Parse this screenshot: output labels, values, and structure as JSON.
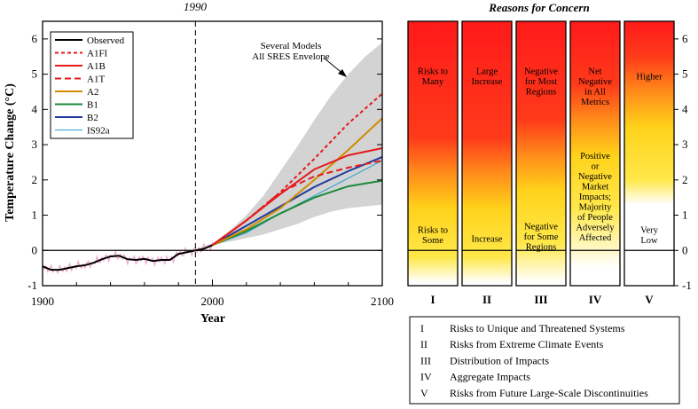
{
  "chart_data": [
    {
      "type": "line",
      "top_label": "1990",
      "xlabel": "Year",
      "ylabel": "Temperature Change (°C)",
      "xlim": [
        1900,
        2100
      ],
      "ylim": [
        -1,
        6.5
      ],
      "x_ticks": [
        "1900",
        "2000",
        "2100"
      ],
      "y_ticks": [
        "-1",
        "0",
        "1",
        "2",
        "3",
        "4",
        "5",
        "6"
      ],
      "reference_line_x": 1990,
      "annotation": [
        "Several Models",
        "All SRES Envelope"
      ],
      "envelope": {
        "x": [
          1990,
          2000,
          2010,
          2020,
          2030,
          2040,
          2050,
          2060,
          2070,
          2080,
          2090,
          2100
        ],
        "upper": [
          0.05,
          0.2,
          0.55,
          1.0,
          1.55,
          2.25,
          2.95,
          3.7,
          4.4,
          5.0,
          5.5,
          5.9
        ],
        "lower": [
          0.05,
          0.15,
          0.25,
          0.35,
          0.45,
          0.6,
          0.75,
          0.95,
          1.1,
          1.2,
          1.25,
          1.3
        ]
      },
      "observed": {
        "name": "Observed",
        "x": [
          1900,
          1905,
          1910,
          1915,
          1920,
          1925,
          1930,
          1935,
          1940,
          1945,
          1950,
          1955,
          1960,
          1965,
          1970,
          1975,
          1980,
          1985,
          1990,
          1995,
          2000
        ],
        "y": [
          -0.45,
          -0.55,
          -0.55,
          -0.5,
          -0.45,
          -0.42,
          -0.35,
          -0.25,
          -0.17,
          -0.15,
          -0.25,
          -0.27,
          -0.24,
          -0.3,
          -0.27,
          -0.27,
          -0.1,
          -0.05,
          0.0,
          0.05,
          0.15
        ]
      },
      "series": [
        {
          "name": "A1FI",
          "color": "#e41a1c",
          "dash": "4,3",
          "x": [
            2000,
            2020,
            2040,
            2060,
            2080,
            2100
          ],
          "y": [
            0.15,
            0.85,
            1.65,
            2.6,
            3.6,
            4.45
          ]
        },
        {
          "name": "A1B",
          "color": "#e41a1c",
          "dash": "",
          "x": [
            2000,
            2020,
            2040,
            2060,
            2080,
            2100
          ],
          "y": [
            0.15,
            0.85,
            1.6,
            2.3,
            2.7,
            2.9
          ]
        },
        {
          "name": "A1T",
          "color": "#e41a1c",
          "dash": "7,4",
          "x": [
            2000,
            2020,
            2040,
            2060,
            2080,
            2100
          ],
          "y": [
            0.15,
            0.85,
            1.65,
            2.1,
            2.35,
            2.55
          ]
        },
        {
          "name": "A2",
          "color": "#d08c00",
          "dash": "",
          "x": [
            2000,
            2020,
            2040,
            2060,
            2080,
            2100
          ],
          "y": [
            0.15,
            0.6,
            1.2,
            2.0,
            2.85,
            3.75
          ]
        },
        {
          "name": "B1",
          "color": "#1a8a3a",
          "dash": "",
          "x": [
            2000,
            2020,
            2040,
            2060,
            2080,
            2100
          ],
          "y": [
            0.15,
            0.55,
            1.05,
            1.5,
            1.82,
            1.98
          ]
        },
        {
          "name": "B2",
          "color": "#1f3a9e",
          "dash": "",
          "x": [
            2000,
            2020,
            2040,
            2060,
            2080,
            2100
          ],
          "y": [
            0.15,
            0.7,
            1.25,
            1.8,
            2.25,
            2.65
          ]
        },
        {
          "name": "IS92a",
          "color": "#2aa0d0",
          "dash": "",
          "x": [
            2000,
            2020,
            2040,
            2060,
            2080,
            2100
          ],
          "y": [
            0.15,
            0.5,
            1.05,
            1.55,
            2.05,
            2.55
          ]
        }
      ]
    },
    {
      "type": "heatmap",
      "title": "Reasons for Concern",
      "ylim": [
        -1,
        6.5
      ],
      "y_ticks": [
        "-1",
        "0",
        "1",
        "2",
        "3",
        "4",
        "5",
        "6"
      ],
      "columns": [
        {
          "numeral": "I",
          "upper_label": [
            "Risks to",
            "Many"
          ],
          "upper_y": 5.0,
          "lower_label": [
            "Risks to",
            "Some"
          ],
          "lower_y": 0.5,
          "yellow_onset": 2.0,
          "fade_bottom": -0.9
        },
        {
          "numeral": "II",
          "upper_label": [
            "Large",
            "Increase"
          ],
          "upper_y": 5.0,
          "lower_label": [
            "Increase"
          ],
          "lower_y": 0.25,
          "yellow_onset": 2.0,
          "fade_bottom": -0.9
        },
        {
          "numeral": "III",
          "upper_label": [
            "Negative",
            "for Most",
            "Regions"
          ],
          "upper_y": 5.0,
          "lower_label": [
            "Negative",
            "for Some",
            "Regions"
          ],
          "lower_y": 0.6,
          "yellow_onset": 2.5,
          "fade_bottom": -0.9
        },
        {
          "numeral": "IV",
          "upper_label": [
            "Net",
            "Negative",
            "in All",
            "Metrics"
          ],
          "upper_y": 5.0,
          "lower_label": [
            "Positive",
            "or",
            "Negative",
            "Market",
            "Impacts;",
            "Majority",
            "of People",
            "Adversely",
            "Affected"
          ],
          "lower_y": 2.6,
          "yellow_onset": 3.5,
          "fade_bottom": -0.5
        },
        {
          "numeral": "V",
          "upper_label": [
            "Higher"
          ],
          "upper_y": 4.85,
          "lower_label": [
            "Very",
            "Low"
          ],
          "lower_y": 0.5,
          "yellow_onset": 4.3,
          "fade_bottom": 1.3
        }
      ]
    }
  ],
  "key": [
    {
      "numeral": "I",
      "text": "Risks to Unique and Threatened Systems"
    },
    {
      "numeral": "II",
      "text": "Risks from Extreme Climate Events"
    },
    {
      "numeral": "III",
      "text": "Distribution of Impacts"
    },
    {
      "numeral": "IV",
      "text": "Aggregate Impacts"
    },
    {
      "numeral": "V",
      "text": "Risks from Future Large-Scale Discontinuities"
    }
  ]
}
